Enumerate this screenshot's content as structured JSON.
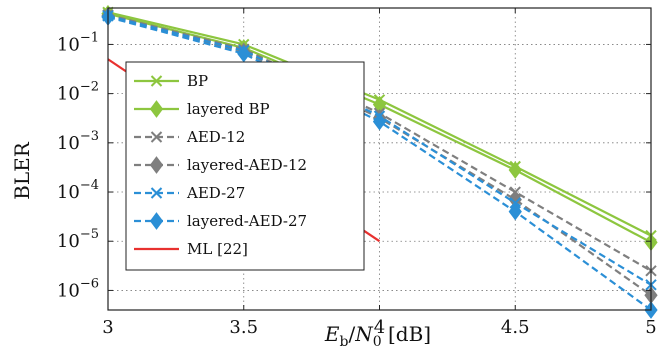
{
  "chart_data": {
    "type": "line",
    "xlabel": "E_b/N_0 [dB]",
    "xlabel_parts": {
      "e": "E",
      "b_sub": "b",
      "slash": "/",
      "n": "N",
      "zero_sub": "0",
      "unit": " [dB]"
    },
    "ylabel": "BLER",
    "xlim": [
      3,
      5
    ],
    "ylim": [
      4e-07,
      0.55
    ],
    "y_scale": "log",
    "x_ticks": [
      {
        "value": 3,
        "label": "3"
      },
      {
        "value": 3.5,
        "label": "3.5"
      },
      {
        "value": 4,
        "label": "4"
      },
      {
        "value": 4.5,
        "label": "4.5"
      },
      {
        "value": 5,
        "label": "5"
      }
    ],
    "y_ticks": [
      {
        "value": 0.1,
        "base": "10",
        "exp": "−1"
      },
      {
        "value": 0.01,
        "base": "10",
        "exp": "−2"
      },
      {
        "value": 0.001,
        "base": "10",
        "exp": "−3"
      },
      {
        "value": 0.0001,
        "base": "10",
        "exp": "−4"
      },
      {
        "value": 1e-05,
        "base": "10",
        "exp": "−5"
      },
      {
        "value": 1e-06,
        "base": "10",
        "exp": "−6"
      }
    ],
    "grid": true,
    "legend_position": "upper-left",
    "series": [
      {
        "name": "BP",
        "color": "#8dc63f",
        "dash": "solid",
        "marker": "x",
        "x": [
          3,
          3.5,
          4,
          4.5,
          5
        ],
        "y": [
          0.45,
          0.1,
          0.0075,
          0.00033,
          1.3e-05
        ]
      },
      {
        "name": "layered BP",
        "color": "#8dc63f",
        "dash": "solid",
        "marker": "diamond",
        "x": [
          3,
          3.5,
          4,
          4.5,
          5
        ],
        "y": [
          0.42,
          0.085,
          0.006,
          0.00028,
          9.5e-06
        ]
      },
      {
        "name": "AED-12",
        "color": "#7f7f7f",
        "dash": "dashed",
        "marker": "x",
        "x": [
          3,
          3.5,
          4,
          4.5,
          5
        ],
        "y": [
          0.4,
          0.08,
          0.004,
          0.0001,
          2.5e-06
        ]
      },
      {
        "name": "layered-AED-12",
        "color": "#7f7f7f",
        "dash": "dashed",
        "marker": "diamond",
        "x": [
          3,
          3.5,
          4,
          4.5,
          5
        ],
        "y": [
          0.38,
          0.072,
          0.0032,
          7e-05,
          8e-07
        ]
      },
      {
        "name": "AED-27",
        "color": "#2b8fd6",
        "dash": "dashed",
        "marker": "x",
        "x": [
          3,
          3.5,
          4,
          4.5,
          5
        ],
        "y": [
          0.38,
          0.075,
          0.0035,
          6e-05,
          1.3e-06
        ]
      },
      {
        "name": "layered-AED-27",
        "color": "#2b8fd6",
        "dash": "dashed",
        "marker": "diamond",
        "x": [
          3,
          3.5,
          4,
          4.5,
          5
        ],
        "y": [
          0.36,
          0.065,
          0.0027,
          4e-05,
          4e-07
        ]
      },
      {
        "name": "ML [22]",
        "color": "#e8312f",
        "dash": "solid",
        "marker": "none",
        "x": [
          3,
          4
        ],
        "y": [
          0.05,
          1e-05
        ]
      }
    ]
  }
}
